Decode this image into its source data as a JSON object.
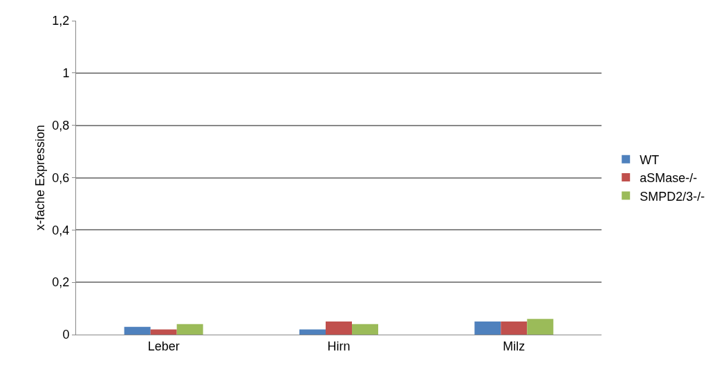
{
  "chart_data": {
    "type": "bar",
    "ylabel": "x-fache Expression",
    "categories": [
      "Leber",
      "Hirn",
      "Milz"
    ],
    "series": [
      {
        "name": "WT",
        "color": "#4f81bd",
        "values": [
          0.03,
          0.02,
          0.05
        ]
      },
      {
        "name": "aSMase-/-",
        "color": "#c0504d",
        "values": [
          0.02,
          0.05,
          0.05
        ]
      },
      {
        "name": "SMPD2/3-/-",
        "color": "#9bbb59",
        "values": [
          0.04,
          0.04,
          0.06
        ]
      }
    ],
    "ylim": [
      0,
      1.2
    ],
    "yticks": [
      {
        "value": 0,
        "label": "0"
      },
      {
        "value": 0.2,
        "label": "0,2"
      },
      {
        "value": 0.4,
        "label": "0,4"
      },
      {
        "value": 0.6,
        "label": "0,6"
      },
      {
        "value": 0.8,
        "label": "0,8"
      },
      {
        "value": 1,
        "label": "1"
      },
      {
        "value": 1.2,
        "label": "1,2"
      }
    ],
    "grid": "y",
    "legend": "right"
  }
}
